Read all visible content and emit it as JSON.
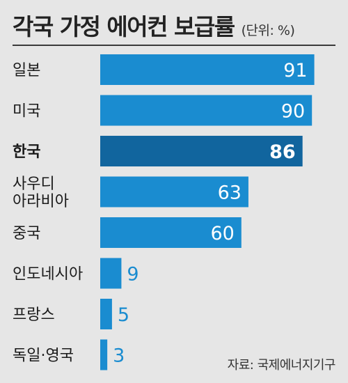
{
  "title": {
    "main": "각국 가정 에어컨 보급률",
    "unit": "(단위: %)"
  },
  "source": "자료: 국제에너지기구",
  "colors": {
    "bar": "#1a8cd0",
    "highlight": "#11659e",
    "value_inside": "#ffffff",
    "value_outside": "#1a8cd0",
    "label": "#1a1a1a"
  },
  "chart_data": {
    "type": "bar",
    "orientation": "horizontal",
    "categories": [
      "일본",
      "미국",
      "한국",
      "사우디 아라비아",
      "중국",
      "인도네시아",
      "프랑스",
      "독일·영국"
    ],
    "values": [
      91,
      90,
      86,
      63,
      60,
      9,
      5,
      3
    ],
    "highlight": "한국",
    "xlim": [
      0,
      100
    ],
    "title": "각국 가정 에어컨 보급률",
    "xlabel": "",
    "ylabel": "",
    "grid": false,
    "legend": "none"
  }
}
